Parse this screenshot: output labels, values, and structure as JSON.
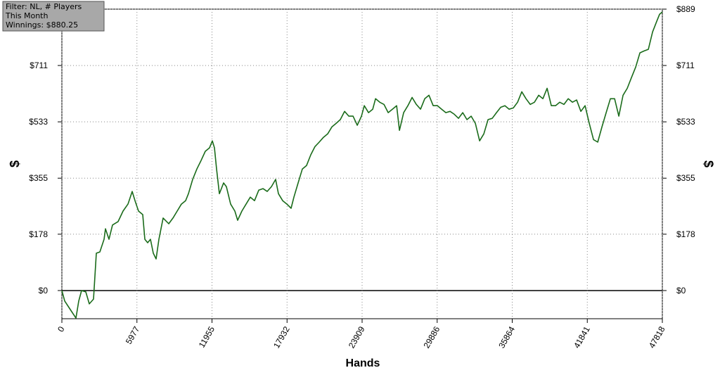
{
  "chart_data": {
    "type": "line",
    "annotations": [
      "Filter: NL, # Players",
      "This Month",
      "Winnings: $880.25"
    ],
    "x_label": "Hands",
    "y_label": "$",
    "xlim": [
      0,
      47818
    ],
    "xticks": [
      0,
      5977,
      11955,
      17932,
      23909,
      29886,
      35864,
      41841,
      47818
    ],
    "ylim": [
      -89,
      889
    ],
    "yticks": [
      {
        "value": 0,
        "label": "$0"
      },
      {
        "value": 178,
        "label": "$178"
      },
      {
        "value": 355,
        "label": "$355"
      },
      {
        "value": 533,
        "label": "$533"
      },
      {
        "value": 711,
        "label": "$711"
      },
      {
        "value": 889,
        "label": "$889"
      }
    ],
    "grid": true,
    "series": [
      {
        "name": "Winnings",
        "color": "#1a6b1a",
        "x": [
          0,
          224,
          672,
          1120,
          1344,
          1568,
          1904,
          2184,
          2520,
          2744,
          3024,
          3360,
          3472,
          3752,
          4032,
          4480,
          4872,
          5264,
          5600,
          5824,
          6104,
          6440,
          6608,
          6832,
          7056,
          7280,
          7504,
          7728,
          8064,
          8512,
          8848,
          9184,
          9520,
          9856,
          10080,
          10416,
          10752,
          11088,
          11424,
          11760,
          11984,
          12152,
          12320,
          12544,
          12880,
          13104,
          13440,
          13776,
          14000,
          14336,
          14672,
          15008,
          15344,
          15680,
          16016,
          16352,
          16688,
          17024,
          17248,
          17584,
          17920,
          18256,
          18480,
          18816,
          19152,
          19488,
          19824,
          20160,
          20496,
          20832,
          21168,
          21504,
          21840,
          22176,
          22512,
          22848,
          23184,
          23520,
          23856,
          24080,
          24416,
          24752,
          24976,
          25312,
          25648,
          25984,
          26320,
          26656,
          26880,
          27216,
          27552,
          27888,
          28224,
          28560,
          28896,
          29232,
          29568,
          29904,
          30240,
          30576,
          30912,
          31248,
          31584,
          31920,
          32256,
          32592,
          32928,
          33264,
          33600,
          33936,
          34272,
          34608,
          34944,
          35280,
          35616,
          35952,
          36288,
          36624,
          36960,
          37296,
          37632,
          37968,
          38304,
          38640,
          38976,
          39312,
          39648,
          39984,
          40320,
          40656,
          40992,
          41328,
          41664,
          42000,
          42336,
          42672,
          43008,
          43344,
          43680,
          44016,
          44352,
          44688,
          45024,
          45360,
          45696,
          46032,
          46368,
          46704,
          47040,
          47376,
          47600,
          47818
        ],
        "values": [
          0,
          -33,
          -60,
          -87,
          -33,
          0,
          -4,
          -42,
          -27,
          118,
          122,
          162,
          195,
          162,
          207,
          218,
          251,
          273,
          313,
          284,
          251,
          240,
          162,
          151,
          162,
          118,
          100,
          162,
          229,
          211,
          229,
          251,
          273,
          284,
          306,
          351,
          384,
          411,
          440,
          451,
          473,
          451,
          384,
          306,
          340,
          328,
          273,
          251,
          222,
          251,
          273,
          295,
          284,
          317,
          322,
          313,
          328,
          351,
          306,
          284,
          273,
          260,
          295,
          340,
          384,
          395,
          429,
          455,
          469,
          484,
          495,
          517,
          528,
          540,
          566,
          551,
          551,
          522,
          551,
          584,
          562,
          573,
          606,
          595,
          588,
          562,
          573,
          584,
          506,
          562,
          584,
          610,
          588,
          573,
          606,
          617,
          584,
          584,
          573,
          562,
          566,
          557,
          544,
          562,
          540,
          551,
          528,
          473,
          495,
          540,
          544,
          562,
          579,
          584,
          573,
          577,
          595,
          628,
          606,
          588,
          595,
          617,
          606,
          639,
          584,
          584,
          595,
          588,
          606,
          595,
          602,
          566,
          584,
          528,
          477,
          469,
          517,
          562,
          606,
          606,
          551,
          617,
          639,
          673,
          706,
          751,
          757,
          762,
          817,
          851,
          873,
          880
        ]
      }
    ]
  }
}
